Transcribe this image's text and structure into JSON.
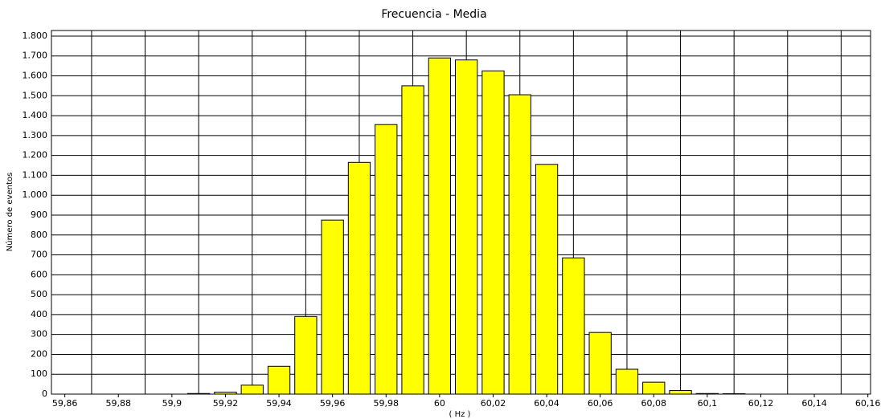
{
  "chart_data": {
    "type": "histogram",
    "title": "Frecuencia  -  Media",
    "x_label": "( Hz )",
    "y_label": "Número de eventos",
    "bins": [
      59.905,
      59.915,
      59.925,
      59.935,
      59.945,
      59.955,
      59.965,
      59.975,
      59.985,
      59.995,
      60.005,
      60.015,
      60.025,
      60.035,
      60.045,
      60.055,
      60.065,
      60.075,
      60.085,
      60.095,
      60.105,
      60.115
    ],
    "counts": [
      3,
      10,
      45,
      140,
      390,
      875,
      1165,
      1355,
      1550,
      1690,
      1680,
      1625,
      1505,
      1155,
      685,
      310,
      125,
      60,
      18,
      3,
      2
    ],
    "color": "#ffff00",
    "xlim": [
      59.855,
      60.161
    ],
    "ylim": [
      0,
      1828
    ],
    "xticks": [
      {
        "value": 59.86,
        "label": "59,86"
      },
      {
        "value": 59.88,
        "label": "59,88"
      },
      {
        "value": 59.9,
        "label": "59,9"
      },
      {
        "value": 59.92,
        "label": "59,92"
      },
      {
        "value": 59.94,
        "label": "59,94"
      },
      {
        "value": 59.96,
        "label": "59,96"
      },
      {
        "value": 59.98,
        "label": "59,98"
      },
      60,
      {
        "value": 60.02,
        "label": "60,02"
      },
      {
        "value": 60.04,
        "label": "60,04"
      },
      {
        "value": 60.06,
        "label": "60,06"
      },
      {
        "value": 60.08,
        "label": "60,08"
      },
      {
        "value": 60.1,
        "label": "60,1"
      },
      {
        "value": 60.12,
        "label": "60,12"
      },
      {
        "value": 60.14,
        "label": "60,14"
      },
      {
        "value": 60.16,
        "label": "60,16"
      }
    ],
    "xgrid": [
      59.87,
      59.89,
      59.91,
      59.93,
      59.95,
      59.97,
      59.99,
      60.01,
      60.03,
      60.05,
      60.07,
      60.09,
      60.11,
      60.13,
      60.15
    ],
    "yticks": [
      0,
      100,
      200,
      300,
      400,
      500,
      600,
      700,
      800,
      900,
      {
        "value": 1000,
        "label": "1.000"
      },
      {
        "value": 1100,
        "label": "1.100"
      },
      {
        "value": 1200,
        "label": "1.200"
      },
      {
        "value": 1300,
        "label": "1.300"
      },
      {
        "value": 1400,
        "label": "1.400"
      },
      {
        "value": 1500,
        "label": "1.500"
      },
      {
        "value": 1600,
        "label": "1.600"
      },
      {
        "value": 1700,
        "label": "1.700"
      },
      {
        "value": 1800,
        "label": "1.800"
      }
    ],
    "grid": true
  }
}
